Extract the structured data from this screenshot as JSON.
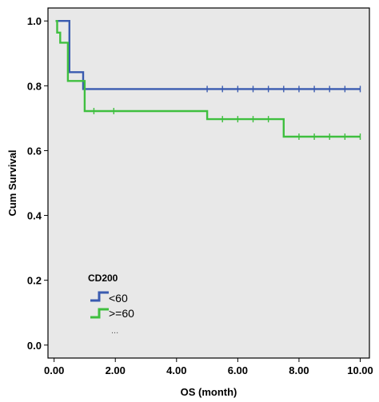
{
  "chart_data": {
    "type": "line",
    "subtype": "kaplan-meier step",
    "xlabel": "OS (month)",
    "ylabel": "Cum Survival",
    "xlim": [
      -0.2,
      10.3
    ],
    "ylim": [
      -0.04,
      1.04
    ],
    "x_ticks": [
      0,
      2,
      4,
      6,
      8,
      10
    ],
    "x_tick_labels": [
      "0.00",
      "2.00",
      "4.00",
      "6.00",
      "8.00",
      "10.00"
    ],
    "y_ticks": [
      0,
      0.2,
      0.4,
      0.6,
      0.8,
      1.0
    ],
    "y_tick_labels": [
      "0.0",
      "0.2",
      "0.4",
      "0.6",
      "0.8",
      "1.0"
    ],
    "grid": false,
    "plot_background": "#e8e8e8",
    "legend": {
      "title": "CD200",
      "placement": "bottom-left",
      "extra": "..."
    },
    "series": [
      {
        "name": "<60",
        "color": "#3a5bb0",
        "steps": [
          [
            0.05,
            1.0
          ],
          [
            0.5,
            1.0
          ],
          [
            0.5,
            0.842
          ],
          [
            0.95,
            0.842
          ],
          [
            0.95,
            0.79
          ],
          [
            10.0,
            0.79
          ]
        ],
        "censored": [
          [
            5.0,
            0.79
          ],
          [
            5.5,
            0.79
          ],
          [
            6.0,
            0.79
          ],
          [
            6.5,
            0.79
          ],
          [
            7.0,
            0.79
          ],
          [
            7.5,
            0.79
          ],
          [
            8.0,
            0.79
          ],
          [
            8.5,
            0.79
          ],
          [
            9.0,
            0.79
          ],
          [
            9.5,
            0.79
          ],
          [
            10.0,
            0.79
          ]
        ]
      },
      {
        "name": ">=60",
        "color": "#3fbf3f",
        "steps": [
          [
            0.05,
            1.0
          ],
          [
            0.1,
            1.0
          ],
          [
            0.1,
            0.964
          ],
          [
            0.2,
            0.964
          ],
          [
            0.2,
            0.933
          ],
          [
            0.45,
            0.933
          ],
          [
            0.45,
            0.815
          ],
          [
            1.0,
            0.815
          ],
          [
            1.0,
            0.722
          ],
          [
            5.0,
            0.722
          ],
          [
            5.0,
            0.697
          ],
          [
            7.5,
            0.697
          ],
          [
            7.5,
            0.643
          ],
          [
            10.0,
            0.643
          ]
        ],
        "censored": [
          [
            1.3,
            0.722
          ],
          [
            1.95,
            0.722
          ],
          [
            5.5,
            0.697
          ],
          [
            6.0,
            0.697
          ],
          [
            6.5,
            0.697
          ],
          [
            7.0,
            0.697
          ],
          [
            8.0,
            0.643
          ],
          [
            8.5,
            0.643
          ],
          [
            9.0,
            0.643
          ],
          [
            9.5,
            0.643
          ],
          [
            10.0,
            0.643
          ]
        ]
      }
    ]
  }
}
